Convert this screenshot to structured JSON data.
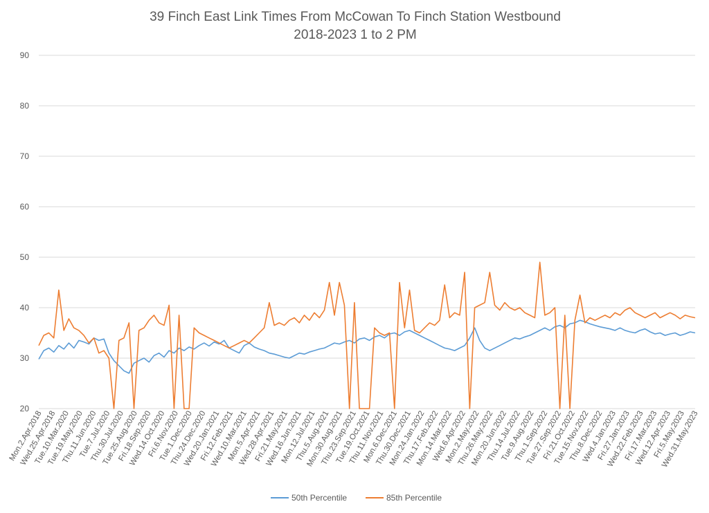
{
  "chart_data": {
    "type": "line",
    "title": "39 Finch East Link Times From McCowan To Finch Station Westbound",
    "subtitle": "2018-2023 1 to 2 PM",
    "xlabel": "",
    "ylabel": "",
    "ylim": [
      20,
      90
    ],
    "yticks": [
      20,
      30,
      40,
      50,
      60,
      70,
      80,
      90
    ],
    "grid": true,
    "legend_position": "bottom",
    "x_tick_labels": [
      "Mon.2.Apr.2018",
      "Wed.25.Apr.2018",
      "Tue.10.Mar.2020",
      "Tue.19.May.2020",
      "Thu.11.Jun.2020",
      "Tue.7.Jul.2020",
      "Thu.30.Jul.2020",
      "Tue.25.Aug.2020",
      "Fri.18.Sep.2020",
      "Wed.14.Oct.2020",
      "Fri.6.Nov.2020",
      "Tue.1.Dec.2020",
      "Thu.24.Dec.2020",
      "Wed.20.Jan.2021",
      "Fri.12.Feb.2021",
      "Wed.10.Mar.2021",
      "Mon.5.Apr.2021",
      "Wed.28.Apr.2021",
      "Fri.21.May.2021",
      "Wed.16.Jun.2021",
      "Mon.12.Jul.2021",
      "Thu.5.Aug.2021",
      "Mon.30.Aug.2021",
      "Thu.23.Sep.2021",
      "Tue.19.Oct.2021",
      "Thu.11.Nov.2021",
      "Mon.6.Dec.2021",
      "Thu.30.Dec.2021",
      "Mon.24.Jan.2022",
      "Thu.17.Feb.2022",
      "Mon.14.Mar.2022",
      "Wed.6.Apr.2022",
      "Mon.2.May.2022",
      "Thu.26.May.2022",
      "Mon.20.Jun.2022",
      "Thu.14.Jul.2022",
      "Tue.9.Aug.2022",
      "Thu.1.Sep.2022",
      "Tue.27.Sep.2022",
      "Fri.21.Oct.2022",
      "Tue.15.Nov.2022",
      "Thu.8.Dec.2022",
      "Wed.4.Jan.2023",
      "Fri.27.Jan.2023",
      "Wed.22.Feb.2023",
      "Fri.17.Mar.2023",
      "Wed.12.Apr.2023",
      "Fri.5.May.2023",
      "Wed.31.May.2023"
    ],
    "series": [
      {
        "name": "50th Percentile",
        "color": "#5b9bd5",
        "values": [
          29.8,
          31.5,
          32.0,
          31.2,
          32.5,
          31.8,
          33.0,
          32.0,
          33.5,
          33.2,
          32.8,
          34.0,
          33.5,
          33.8,
          31.0,
          29.5,
          28.5,
          27.5,
          27.0,
          29.0,
          29.5,
          30.0,
          29.2,
          30.5,
          31.0,
          30.2,
          31.5,
          31.0,
          32.0,
          31.5,
          32.2,
          31.8,
          32.5,
          33.0,
          32.4,
          33.2,
          32.8,
          33.5,
          32.0,
          31.5,
          31.0,
          32.5,
          33.0,
          32.2,
          31.8,
          31.5,
          31.0,
          30.8,
          30.5,
          30.2,
          30.0,
          30.5,
          31.0,
          30.8,
          31.2,
          31.5,
          31.8,
          32.0,
          32.5,
          33.0,
          32.8,
          33.2,
          33.5,
          33.0,
          33.8,
          34.0,
          33.5,
          34.2,
          34.5,
          34.0,
          34.8,
          35.0,
          34.5,
          35.2,
          35.5,
          35.0,
          34.5,
          34.0,
          33.5,
          33.0,
          32.5,
          32.0,
          31.8,
          31.5,
          32.0,
          32.5,
          34.0,
          36.0,
          33.5,
          32.0,
          31.5,
          32.0,
          32.5,
          33.0,
          33.5,
          34.0,
          33.8,
          34.2,
          34.5,
          35.0,
          35.5,
          36.0,
          35.5,
          36.2,
          36.5,
          36.0,
          36.8,
          37.0,
          37.5,
          37.2,
          36.8,
          36.5,
          36.2,
          36.0,
          35.8,
          35.5,
          36.0,
          35.5,
          35.2,
          35.0,
          35.5,
          35.8,
          35.2,
          34.8,
          35.0,
          34.5,
          34.8,
          35.0,
          34.5,
          34.8,
          35.2,
          35.0
        ]
      },
      {
        "name": "85th Percentile",
        "color": "#ed7d31",
        "values": [
          32.5,
          34.5,
          35.0,
          34.0,
          43.5,
          35.5,
          37.8,
          36.0,
          35.5,
          34.5,
          33.0,
          34.0,
          31.0,
          31.5,
          30.0,
          20.0,
          33.5,
          34.0,
          37.0,
          20.0,
          35.5,
          36.0,
          37.5,
          38.5,
          37.0,
          36.5,
          40.5,
          20.0,
          38.5,
          20.0,
          20.0,
          36.0,
          35.0,
          34.5,
          34.0,
          33.5,
          33.0,
          32.5,
          32.0,
          32.5,
          33.0,
          33.5,
          33.0,
          34.0,
          35.0,
          36.0,
          41.0,
          36.5,
          37.0,
          36.5,
          37.5,
          38.0,
          37.0,
          38.5,
          37.5,
          39.0,
          38.0,
          39.5,
          45.0,
          38.5,
          45.0,
          40.5,
          20.0,
          41.0,
          20.0,
          20.0,
          20.0,
          36.0,
          35.0,
          34.5,
          35.0,
          20.0,
          45.0,
          36.0,
          43.5,
          35.5,
          35.0,
          36.0,
          37.0,
          36.5,
          37.5,
          44.5,
          38.0,
          39.0,
          38.5,
          47.0,
          20.0,
          40.0,
          40.5,
          41.0,
          47.0,
          40.5,
          39.5,
          41.0,
          40.0,
          39.5,
          40.0,
          39.0,
          38.5,
          38.0,
          49.0,
          38.5,
          39.0,
          40.0,
          20.0,
          38.5,
          20.0,
          37.5,
          42.5,
          37.0,
          38.0,
          37.5,
          38.0,
          38.5,
          38.0,
          39.0,
          38.5,
          39.5,
          40.0,
          39.0,
          38.5,
          38.0,
          38.5,
          39.0,
          38.0,
          38.5,
          39.0,
          38.5,
          37.8,
          38.5,
          38.2,
          38.0
        ]
      }
    ]
  }
}
